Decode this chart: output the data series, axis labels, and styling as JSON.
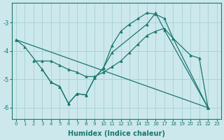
{
  "xlabel": "Humidex (Indice chaleur)",
  "xlim": [
    -0.5,
    23.5
  ],
  "ylim": [
    -6.4,
    -2.3
  ],
  "yticks": [
    -6,
    -5,
    -4,
    -3
  ],
  "xticks": [
    0,
    1,
    2,
    3,
    4,
    5,
    6,
    7,
    8,
    9,
    10,
    11,
    12,
    13,
    14,
    15,
    16,
    17,
    18,
    19,
    20,
    21,
    22,
    23
  ],
  "bg_color": "#cce8ec",
  "grid_color": "#aad4d8",
  "line_color": "#1a7870",
  "lines": [
    {
      "x": [
        0,
        22
      ],
      "y": [
        -3.6,
        -6.0
      ]
    },
    {
      "x": [
        2,
        3,
        4,
        5,
        6,
        7,
        8,
        9,
        10,
        11,
        12,
        13,
        14,
        15,
        16,
        17,
        18,
        22
      ],
      "y": [
        -4.35,
        -4.35,
        -4.35,
        -4.5,
        -4.65,
        -4.75,
        -4.9,
        -4.9,
        -4.75,
        -4.55,
        -4.35,
        -4.05,
        -3.75,
        -3.45,
        -3.3,
        -3.2,
        -3.55,
        -6.0
      ]
    },
    {
      "x": [
        0,
        1,
        3,
        4,
        5,
        6,
        7,
        8,
        9,
        10,
        11,
        12,
        13,
        14,
        15,
        16,
        17,
        18,
        20,
        21,
        22
      ],
      "y": [
        -3.6,
        -3.85,
        -4.65,
        -5.1,
        -5.25,
        -5.85,
        -5.5,
        -5.55,
        -4.95,
        -4.6,
        -3.8,
        -3.3,
        -3.05,
        -2.85,
        -2.65,
        -2.7,
        -2.85,
        -3.55,
        -4.15,
        -4.25,
        -6.0
      ]
    },
    {
      "x": [
        3,
        4,
        5,
        6,
        7,
        8,
        9,
        10,
        11,
        15,
        16,
        17,
        22
      ],
      "y": [
        -4.65,
        -5.1,
        -5.25,
        -5.85,
        -5.5,
        -5.55,
        -4.95,
        -4.6,
        -4.05,
        -3.05,
        -2.65,
        -3.25,
        -6.0
      ]
    }
  ]
}
